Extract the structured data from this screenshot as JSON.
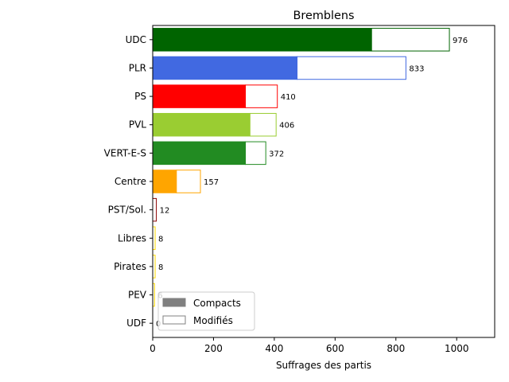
{
  "chart_data": {
    "type": "bar",
    "orientation": "horizontal",
    "stacked": true,
    "title": "Bremblens",
    "xlabel": "Suffrages des partis",
    "ylabel": "",
    "xlim": [
      0,
      1125
    ],
    "xticks": [
      0,
      200,
      400,
      600,
      800,
      1000
    ],
    "xtick_labels": [
      "0",
      "200",
      "400",
      "600",
      "800",
      "1000"
    ],
    "categories": [
      "UDC",
      "PLR",
      "PS",
      "PVL",
      "VERT-E-S",
      "Centre",
      "PST/Sol.",
      "Libres",
      "Pirates",
      "PEV",
      "UDF"
    ],
    "colors": [
      "#006400",
      "#4169e1",
      "#ff0000",
      "#9acd32",
      "#228b22",
      "#ffa500",
      "#8b0000",
      "#ffd700",
      "#ffd700",
      "#ffd700",
      "#a0a0a0"
    ],
    "series": [
      {
        "name": "Compacts",
        "values": [
          720,
          475,
          305,
          320,
          305,
          78,
          0,
          0,
          0,
          0,
          0
        ]
      },
      {
        "name": "Modifiés",
        "values": [
          256,
          358,
          105,
          86,
          67,
          79,
          12,
          8,
          8,
          6,
          0
        ]
      }
    ],
    "totals": [
      976,
      833,
      410,
      406,
      372,
      157,
      12,
      8,
      8,
      6,
      0
    ],
    "total_labels": [
      "976",
      "833",
      "410",
      "406",
      "372",
      "157",
      "12",
      "8",
      "8",
      "6",
      "0"
    ],
    "legend": {
      "position": "lower-left",
      "entries": [
        "Compacts",
        "Modifiés"
      ]
    },
    "grid": false
  }
}
